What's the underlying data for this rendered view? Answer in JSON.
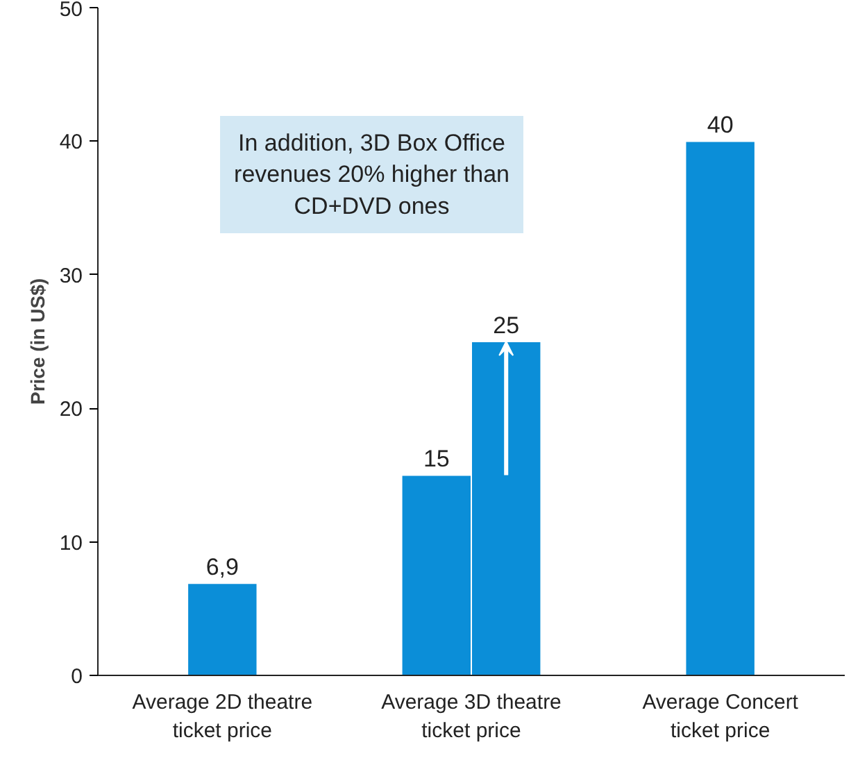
{
  "chart_data": {
    "type": "bar",
    "ylabel": "Price (in US$)",
    "categories": [
      "Average 2D theatre\nticket price",
      "Average 3D theatre\nticket price",
      "Average Concert\nticket price"
    ],
    "series": [
      {
        "color": "#0b8ed8",
        "values": [
          6.9,
          15,
          40
        ],
        "value_labels": [
          "6,9",
          "15",
          "40"
        ]
      },
      {
        "color": "#0b8ed8",
        "values": [
          null,
          25,
          null
        ],
        "value_labels": [
          null,
          "25",
          null
        ]
      }
    ],
    "ylim": [
      0,
      50
    ],
    "yticks": [
      0,
      10,
      20,
      30,
      40,
      50
    ],
    "annotations": [
      "In addition, 3D Box Office\nrevenues 20% higher than\nCD+DVD ones"
    ]
  }
}
